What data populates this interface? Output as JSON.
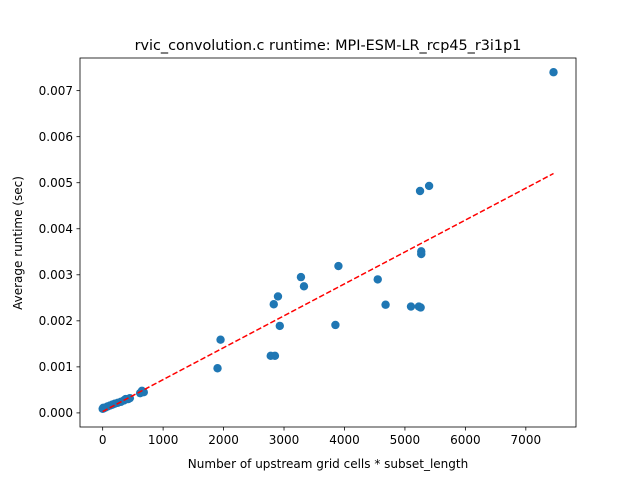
{
  "chart_data": {
    "type": "scatter",
    "title": "rvic_convolution.c runtime: MPI-ESM-LR_rcp45_r3i1p1",
    "xlabel": "Number of upstream grid cells * subset_length",
    "ylabel": "Average runtime (sec)",
    "xlim": [
      -375,
      7830
    ],
    "ylim": [
      -0.000306,
      0.007709
    ],
    "xticks": [
      0,
      1000,
      2000,
      3000,
      4000,
      5000,
      6000,
      7000
    ],
    "xtick_labels": [
      "0",
      "1000",
      "2000",
      "3000",
      "4000",
      "5000",
      "6000",
      "7000"
    ],
    "yticks": [
      0.0,
      0.001,
      0.002,
      0.003,
      0.004,
      0.005,
      0.006,
      0.007
    ],
    "ytick_labels": [
      "0.000",
      "0.001",
      "0.002",
      "0.003",
      "0.004",
      "0.005",
      "0.006",
      "0.007"
    ],
    "grid": false,
    "colors": {
      "points": "#1f77b4",
      "fit": "#ff0000"
    },
    "series": [
      {
        "type": "scatter",
        "points": [
          [
            7458,
            0.0074
          ],
          [
            5250,
            0.00482
          ],
          [
            5400,
            0.00493
          ],
          [
            5270,
            0.00351
          ],
          [
            5270,
            0.00345
          ],
          [
            4550,
            0.0029
          ],
          [
            4680,
            0.00235
          ],
          [
            5100,
            0.00231
          ],
          [
            5230,
            0.00231
          ],
          [
            5260,
            0.00229
          ],
          [
            3900,
            0.00319
          ],
          [
            3850,
            0.00191
          ],
          [
            3280,
            0.00295
          ],
          [
            3330,
            0.00275
          ],
          [
            2900,
            0.00253
          ],
          [
            2830,
            0.00236
          ],
          [
            2930,
            0.00189
          ],
          [
            2780,
            0.00124
          ],
          [
            2850,
            0.00124
          ],
          [
            1950,
            0.00159
          ],
          [
            1900,
            0.00097
          ],
          [
            650,
            0.00048
          ],
          [
            620,
            0.00043
          ],
          [
            680,
            0.00045
          ],
          [
            450,
            0.00032
          ],
          [
            420,
            0.0003
          ],
          [
            380,
            0.0003
          ],
          [
            350,
            0.00027
          ],
          [
            300,
            0.00024
          ],
          [
            250,
            0.00022
          ],
          [
            200,
            0.0002
          ],
          [
            160,
            0.00018
          ],
          [
            120,
            0.00016
          ],
          [
            80,
            0.00014
          ],
          [
            50,
            0.00012
          ],
          [
            20,
            0.0001
          ],
          [
            0,
            9e-05
          ],
          [
            10,
            0.00011
          ]
        ]
      },
      {
        "type": "line",
        "style": "dashed",
        "points": [
          [
            0,
            3e-05
          ],
          [
            7458,
            0.0052
          ]
        ]
      }
    ]
  }
}
